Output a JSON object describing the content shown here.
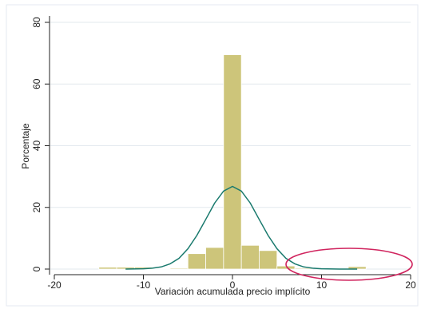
{
  "chart_data": {
    "type": "histogram",
    "xlabel": "Variación acumulada precio implícito",
    "ylabel": "Porcentaje",
    "bins": [
      -15,
      -13,
      -11,
      -9,
      -7,
      -5,
      -3,
      -1,
      1,
      3,
      5,
      7,
      9,
      11,
      13,
      15
    ],
    "values": [
      0.6,
      0.6,
      0.6,
      0.2,
      0.3,
      5,
      7,
      69.5,
      7.7,
      6,
      1,
      0.3,
      0,
      0,
      0.8
    ],
    "color": "#cdc57a",
    "curve": {
      "color": "#1a7a6e",
      "x": [
        -12,
        -10,
        -9,
        -8,
        -7,
        -6,
        -5,
        -4,
        -3,
        -2,
        -1,
        0,
        1,
        2,
        3,
        4,
        5,
        6,
        7,
        8,
        9,
        10,
        12,
        14
      ],
      "values": [
        0,
        0.1,
        0.3,
        0.7,
        1.7,
        3.5,
        6.6,
        10.9,
        16.1,
        21.4,
        25.3,
        26.8,
        25.3,
        21.4,
        16.1,
        10.9,
        6.6,
        3.5,
        1.7,
        0.7,
        0.3,
        0.1,
        0,
        0
      ]
    },
    "xlim": [
      -20,
      20
    ],
    "xticks": [
      -20,
      -10,
      0,
      10,
      20
    ],
    "ylim": [
      0,
      80
    ],
    "yticks": [
      0,
      20,
      40,
      60,
      80
    ],
    "grid": true
  }
}
